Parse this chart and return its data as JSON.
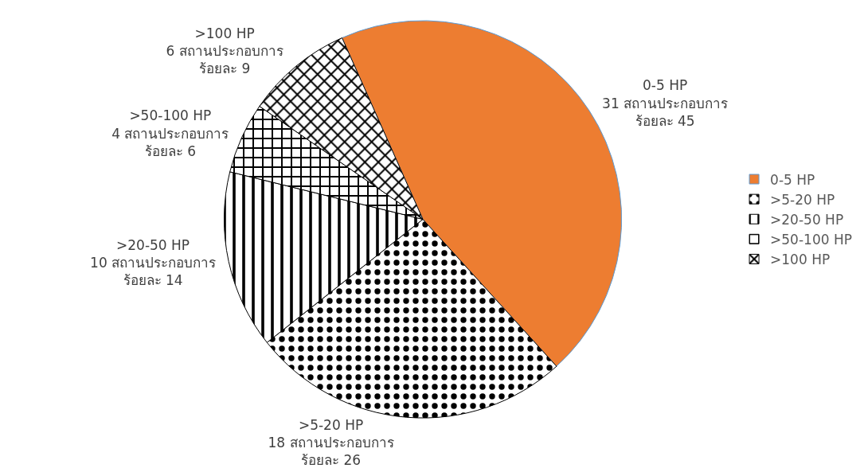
{
  "chart_data": {
    "type": "pie",
    "categories": [
      "0-5 HP",
      ">5-20 HP",
      ">20-50 HP",
      ">50-100 HP",
      ">100 HP"
    ],
    "values": [
      31,
      18,
      10,
      4,
      6
    ],
    "value_labels": [
      "0-5 HP\n31 สถานประกอบการ\nร้อยละ 45",
      ">5-20 HP\n18 สถานประกอบการ\nร้อยละ 26",
      ">20-50 HP\n10 สถานประกอบการ\nร้อยละ 14",
      ">50-100 HP\n4 สถานประกอบการ\nร้อยละ 6",
      ">100 HP\n6 สถานประกอบการ\nร้อยละ 9"
    ],
    "colors": [
      "#ed7d31",
      "#000000",
      "#000000",
      "#000000",
      "#000000"
    ],
    "legend": "right"
  }
}
